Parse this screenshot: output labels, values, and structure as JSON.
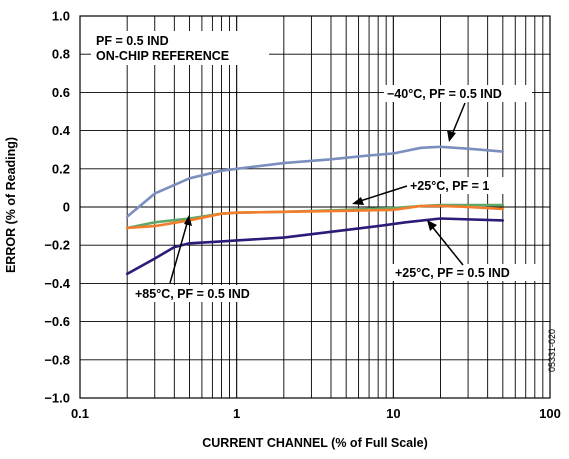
{
  "chart_data": {
    "type": "line",
    "title": "",
    "xlabel": "CURRENT CHANNEL (% of Full Scale)",
    "ylabel": "ERROR (% of Reading)",
    "xscale": "log",
    "xlim": [
      0.1,
      100
    ],
    "ylim": [
      -1.0,
      1.0
    ],
    "grid": true,
    "x_ticks": [
      "0.1",
      "1",
      "10",
      "100"
    ],
    "y_ticks": [
      "1.0",
      "0.8",
      "0.6",
      "0.4",
      "0.2",
      "0",
      "−0.2",
      "−0.4",
      "−0.6",
      "−0.8",
      "−1.0"
    ],
    "y_tick_values": [
      1.0,
      0.8,
      0.6,
      0.4,
      0.2,
      0,
      -0.2,
      -0.4,
      -0.6,
      -0.8,
      -1.0
    ],
    "series": [
      {
        "name": "−40°C, PF = 0.5 IND",
        "color": "#7b8fbe",
        "points": [
          [
            0.2,
            -0.05
          ],
          [
            0.3,
            0.07
          ],
          [
            0.5,
            0.15
          ],
          [
            0.8,
            0.19
          ],
          [
            1.0,
            0.2
          ],
          [
            2,
            0.23
          ],
          [
            4,
            0.25
          ],
          [
            7,
            0.27
          ],
          [
            10,
            0.28
          ],
          [
            15,
            0.31
          ],
          [
            20,
            0.315
          ],
          [
            30,
            0.305
          ],
          [
            50,
            0.29
          ]
        ]
      },
      {
        "name": "+25°C, PF = 1",
        "color": "#5fa86a",
        "points": [
          [
            0.2,
            -0.11
          ],
          [
            0.3,
            -0.08
          ],
          [
            0.5,
            -0.06
          ],
          [
            0.8,
            -0.035
          ],
          [
            1,
            -0.03
          ],
          [
            2,
            -0.025
          ],
          [
            5,
            -0.015
          ],
          [
            10,
            -0.005
          ],
          [
            15,
            0.005
          ],
          [
            20,
            0.01
          ],
          [
            30,
            0.01
          ],
          [
            50,
            0.01
          ]
        ]
      },
      {
        "name": "+25°C, PF = 0.5 IND",
        "color": "#2e1a78",
        "points": [
          [
            0.2,
            -0.35
          ],
          [
            0.3,
            -0.27
          ],
          [
            0.4,
            -0.21
          ],
          [
            0.5,
            -0.19
          ],
          [
            0.8,
            -0.18
          ],
          [
            1,
            -0.175
          ],
          [
            2,
            -0.16
          ],
          [
            4,
            -0.13
          ],
          [
            8,
            -0.1
          ],
          [
            12,
            -0.08
          ],
          [
            20,
            -0.06
          ],
          [
            50,
            -0.07
          ]
        ]
      },
      {
        "name": "+85°C, PF = 0.5 IND",
        "color": "#f47c2a",
        "points": [
          [
            0.2,
            -0.11
          ],
          [
            0.3,
            -0.1
          ],
          [
            0.5,
            -0.07
          ],
          [
            0.8,
            -0.035
          ],
          [
            1,
            -0.03
          ],
          [
            2,
            -0.025
          ],
          [
            5,
            -0.02
          ],
          [
            10,
            -0.015
          ],
          [
            15,
            0.005
          ],
          [
            20,
            0.005
          ],
          [
            30,
            0.0
          ],
          [
            50,
            -0.01
          ]
        ]
      }
    ],
    "annotations": [
      {
        "text": "PF = 0.5 IND",
        "x": 0.1,
        "y": 0.8
      },
      {
        "text": "ON-CHIP REFERENCE",
        "x": 0.1,
        "y": 0.72
      },
      {
        "text": "−40°C, PF = 0.5 IND",
        "series": 0
      },
      {
        "text": "+25°C, PF = 1",
        "series": 1
      },
      {
        "text": "+25°C, PF = 0.5 IND",
        "series": 2
      },
      {
        "text": "+85°C, PF = 0.5 IND",
        "series": 3
      }
    ],
    "figure_id": "05331-020"
  }
}
